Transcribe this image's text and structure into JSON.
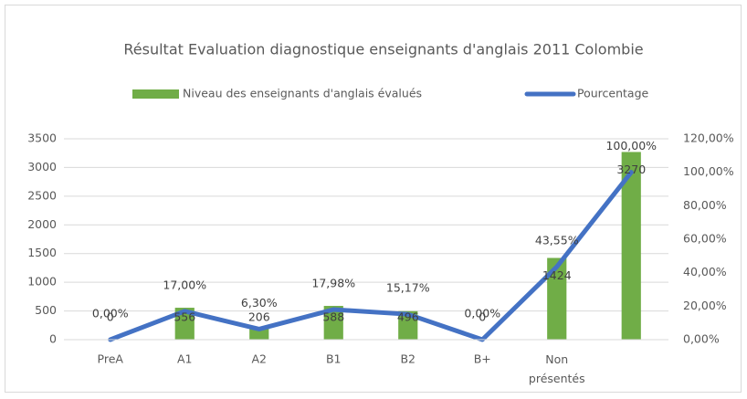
{
  "chart_data": {
    "type": "bar",
    "title": "Résultat Evaluation diagnostique enseignants d'anglais 2011  Colombie",
    "categories": [
      "PreA",
      "A1",
      "A2",
      "B1",
      "B2",
      "B+",
      "Non présentés",
      null
    ],
    "series": [
      {
        "name": "Niveau des enseignants d'anglais évalués",
        "type": "bar",
        "color": "#70ad47",
        "values": [
          0,
          556,
          206,
          588,
          496,
          0,
          1424,
          3270
        ]
      },
      {
        "name": "Pourcentage",
        "type": "line",
        "axis": "y2",
        "color": "#4472c4",
        "values": [
          0,
          17,
          6.3,
          17.98,
          15.17,
          0,
          43.55,
          100
        ],
        "value_labels": [
          "0,00%",
          "17,00%",
          "6,30%",
          "17,98%",
          "15,17%",
          "0,00%",
          "43,55%",
          "100,00%"
        ]
      }
    ],
    "ylim": [
      0,
      3500
    ],
    "yticks": [
      0,
      500,
      1000,
      1500,
      2000,
      2500,
      3000,
      3500
    ],
    "y2lim": [
      0,
      120
    ],
    "y2ticks": [
      {
        "value": 0,
        "label": "0,00%"
      },
      {
        "value": 20,
        "label": "20,00%"
      },
      {
        "value": 40,
        "label": "40,00%"
      },
      {
        "value": 60,
        "label": "60,00%"
      },
      {
        "value": 80,
        "label": "80,00%"
      },
      {
        "value": 100,
        "label": "100,00%"
      },
      {
        "value": 120,
        "label": "120,00%"
      }
    ],
    "grid": true,
    "legend": "top"
  }
}
